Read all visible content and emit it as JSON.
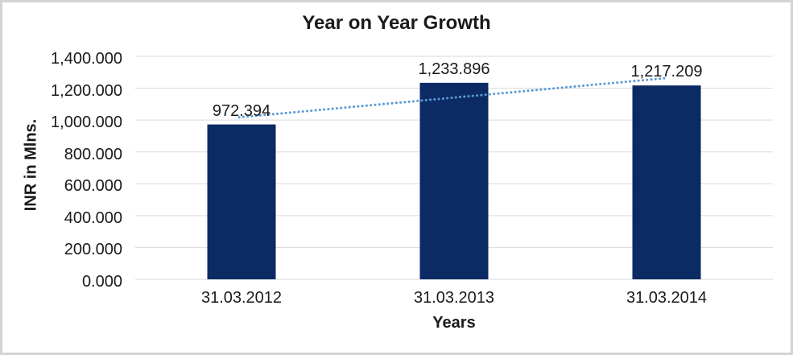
{
  "chart_data": {
    "type": "bar",
    "title": "Year on Year Growth",
    "xlabel": "Years",
    "ylabel": "INR in Mlns.",
    "categories": [
      "31.03.2012",
      "31.03.2013",
      "31.03.2014"
    ],
    "values": [
      972.394,
      1233.896,
      1217.209
    ],
    "data_labels": [
      "972.394",
      "1,233.896",
      "1,217.209"
    ],
    "ylim": [
      0,
      1400
    ],
    "ytick_step": 200,
    "ytick_labels": [
      "0.000",
      "200.000",
      "400.000",
      "600.000",
      "800.000",
      "1,000.000",
      "1,200.000",
      "1,400.000"
    ],
    "grid": true,
    "legend": "none",
    "trendline": {
      "type": "linear",
      "style": "dotted",
      "color": "#5B9BD5"
    },
    "colors": {
      "bar": "#0C2A63",
      "gridline": "#D9D9D9",
      "text": "#1A1A1A",
      "frame_border": "#D4D4D4",
      "background": "#FFFFFF"
    }
  }
}
